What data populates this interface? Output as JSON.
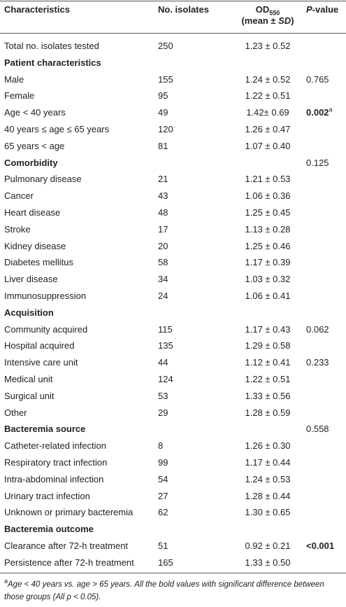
{
  "header": {
    "characteristics": "Characteristics",
    "isolates": "No. isolates",
    "od": {
      "main": "OD",
      "sub": "550",
      "line2_pre": "(mean ± ",
      "line2_em": "SD",
      "line2_post": ")"
    },
    "p": {
      "em": "P",
      "rest": "-value"
    }
  },
  "rows": [
    {
      "label": "Total no. isolates tested",
      "n": 250,
      "od": "1.23 ± 0.52"
    },
    {
      "section": "Patient characteristics"
    },
    {
      "label": "Male",
      "n": 155,
      "od": "1.24 ± 0.52",
      "p": "0.765"
    },
    {
      "label": "Female",
      "n": 95,
      "od": "1.22 ± 0.51"
    },
    {
      "label": "Age < 40 years",
      "n": 49,
      "od": "1.42± 0.69",
      "p": "0.002",
      "p_note": "a",
      "bold": true
    },
    {
      "label": "40 years ≤ age ≤ 65 years",
      "n": 120,
      "od": "1.26 ± 0.47"
    },
    {
      "label": "65 years < age",
      "n": 81,
      "od": "1.07 ± 0.40"
    },
    {
      "section": "Comorbidity",
      "p": "0.125"
    },
    {
      "label": "Pulmonary disease",
      "n": 21,
      "od": "1.21 ± 0.53"
    },
    {
      "label": "Cancer",
      "n": 43,
      "od": "1.06 ± 0.36"
    },
    {
      "label": "Heart disease",
      "n": 48,
      "od": "1.25 ± 0.45"
    },
    {
      "label": "Stroke",
      "n": 17,
      "od": "1.13 ± 0.28"
    },
    {
      "label": "Kidney disease",
      "n": 20,
      "od": "1.25 ± 0.46"
    },
    {
      "label": "Diabetes mellitus",
      "n": 58,
      "od": "1.17 ± 0.39"
    },
    {
      "label": "Liver disease",
      "n": 34,
      "od": "1.03 ± 0.32"
    },
    {
      "label": "Immunosuppression",
      "n": 24,
      "od": "1.06 ± 0.41"
    },
    {
      "section": "Acquisition"
    },
    {
      "label": "Community acquired",
      "n": 115,
      "od": "1.17 ± 0.43",
      "p": "0.062"
    },
    {
      "label": "Hospital acquired",
      "n": 135,
      "od": "1.29 ± 0.58"
    },
    {
      "label": "Intensive care unit",
      "n": 44,
      "od": "1.12 ± 0.41",
      "p": "0.233"
    },
    {
      "label": "Medical unit",
      "n": 124,
      "od": "1.22 ± 0.51"
    },
    {
      "label": "Surgical unit",
      "n": 53,
      "od": "1.33 ± 0.56"
    },
    {
      "label": "Other",
      "n": 29,
      "od": "1.28 ± 0.59"
    },
    {
      "section": "Bacteremia source",
      "p": "0.558"
    },
    {
      "label": "Catheter-related infection",
      "n": 8,
      "od": "1.26 ± 0.30"
    },
    {
      "label": "Respiratory tract infection",
      "n": 99,
      "od": "1.17 ± 0.44"
    },
    {
      "label": "Intra-abdominal infection",
      "n": 54,
      "od": "1.24 ± 0.53"
    },
    {
      "label": "Urinary tract infection",
      "n": 27,
      "od": "1.28 ± 0.44"
    },
    {
      "label": "Unknown or primary bacteremia",
      "n": 62,
      "od": "1.30 ± 0.65"
    },
    {
      "section": "Bacteremia outcome"
    },
    {
      "label": "Clearance after 72-h treatment",
      "n": 51,
      "od": "0.92 ± 0.21",
      "p": "<0.001",
      "bold": true
    },
    {
      "label": "Persistence after 72-h treatment",
      "n": 165,
      "od": "1.33 ± 0.50"
    }
  ],
  "footnote": {
    "mark": "a",
    "text": "Age < 40 years vs. age > 65 years. All the bold values with significant difference between those groups (All p < 0.05)."
  }
}
